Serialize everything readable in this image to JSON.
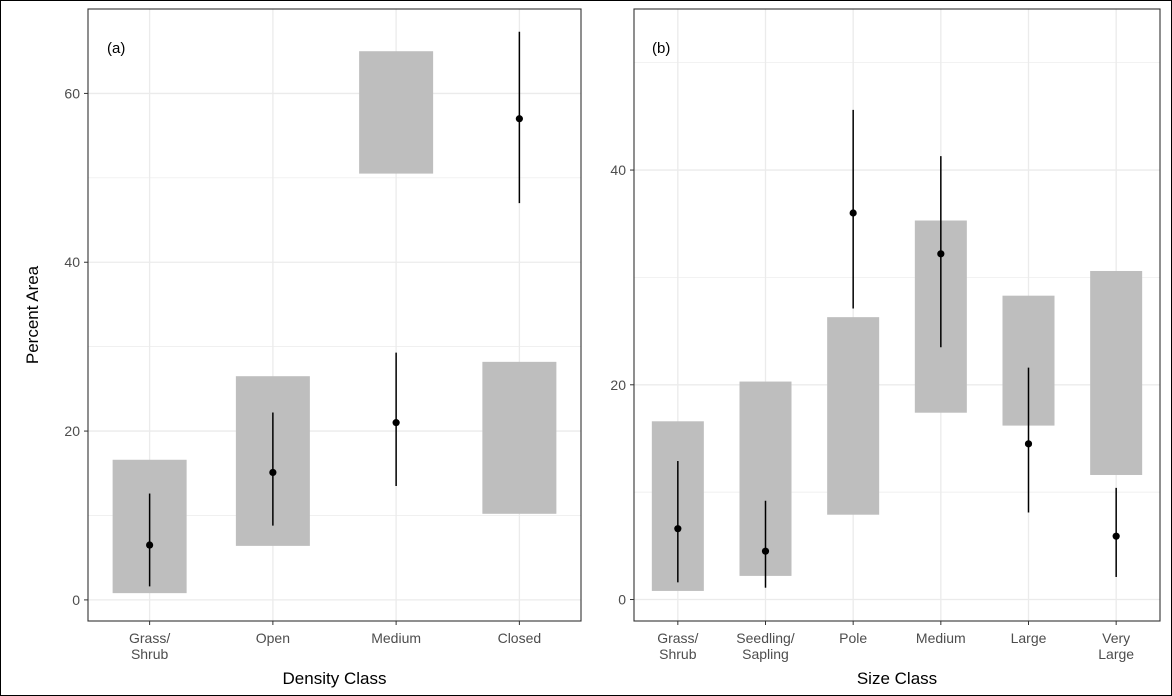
{
  "figure": {
    "colors": {
      "range_bar": "#bebebe",
      "estimate": "#000000",
      "grid": "#ebebeb",
      "frame": "#333333",
      "outer_border": "#000000"
    }
  },
  "chart_data": [
    {
      "type": "bar",
      "panel_label": "(a)",
      "title": "",
      "xlabel": "Density Class",
      "ylabel": "Percent Area",
      "categories": [
        [
          "Grass/",
          "Shrub"
        ],
        [
          "Open"
        ],
        [
          "Medium"
        ],
        [
          "Closed"
        ]
      ],
      "range_bars": [
        {
          "low": 0.8,
          "high": 16.6
        },
        {
          "low": 6.4,
          "high": 26.5
        },
        {
          "low": 50.5,
          "high": 65.0
        },
        {
          "low": 10.2,
          "high": 28.2
        }
      ],
      "estimates": [
        {
          "value": 6.5,
          "low": 1.6,
          "high": 12.6
        },
        {
          "value": 15.1,
          "low": 8.8,
          "high": 22.2
        },
        {
          "value": 21.0,
          "low": 13.5,
          "high": 29.3
        },
        {
          "value": 57.0,
          "low": 47.0,
          "high": 67.3
        }
      ],
      "yticks": [
        0,
        20,
        40,
        60
      ],
      "ylim": [
        -2.5,
        70
      ],
      "grid": true
    },
    {
      "type": "bar",
      "panel_label": "(b)",
      "title": "",
      "xlabel": "Size Class",
      "ylabel": "",
      "categories": [
        [
          "Grass/",
          "Shrub"
        ],
        [
          "Seedling/",
          "Sapling"
        ],
        [
          "Pole"
        ],
        [
          "Medium"
        ],
        [
          "Large"
        ],
        [
          "Very",
          "Large"
        ]
      ],
      "range_bars": [
        {
          "low": 0.8,
          "high": 16.6
        },
        {
          "low": 2.2,
          "high": 20.3
        },
        {
          "low": 7.9,
          "high": 26.3
        },
        {
          "low": 17.4,
          "high": 35.3
        },
        {
          "low": 16.2,
          "high": 28.3
        },
        {
          "low": 11.6,
          "high": 30.6
        }
      ],
      "estimates": [
        {
          "value": 6.6,
          "low": 1.6,
          "high": 12.9
        },
        {
          "value": 4.5,
          "low": 1.1,
          "high": 9.2
        },
        {
          "value": 36.0,
          "low": 27.1,
          "high": 45.6
        },
        {
          "value": 32.2,
          "low": 23.5,
          "high": 41.3
        },
        {
          "value": 14.5,
          "low": 8.1,
          "high": 21.6
        },
        {
          "value": 5.9,
          "low": 2.1,
          "high": 10.4
        }
      ],
      "yticks": [
        0,
        20,
        40
      ],
      "ylim": [
        -2.0,
        55
      ],
      "grid": true
    }
  ]
}
